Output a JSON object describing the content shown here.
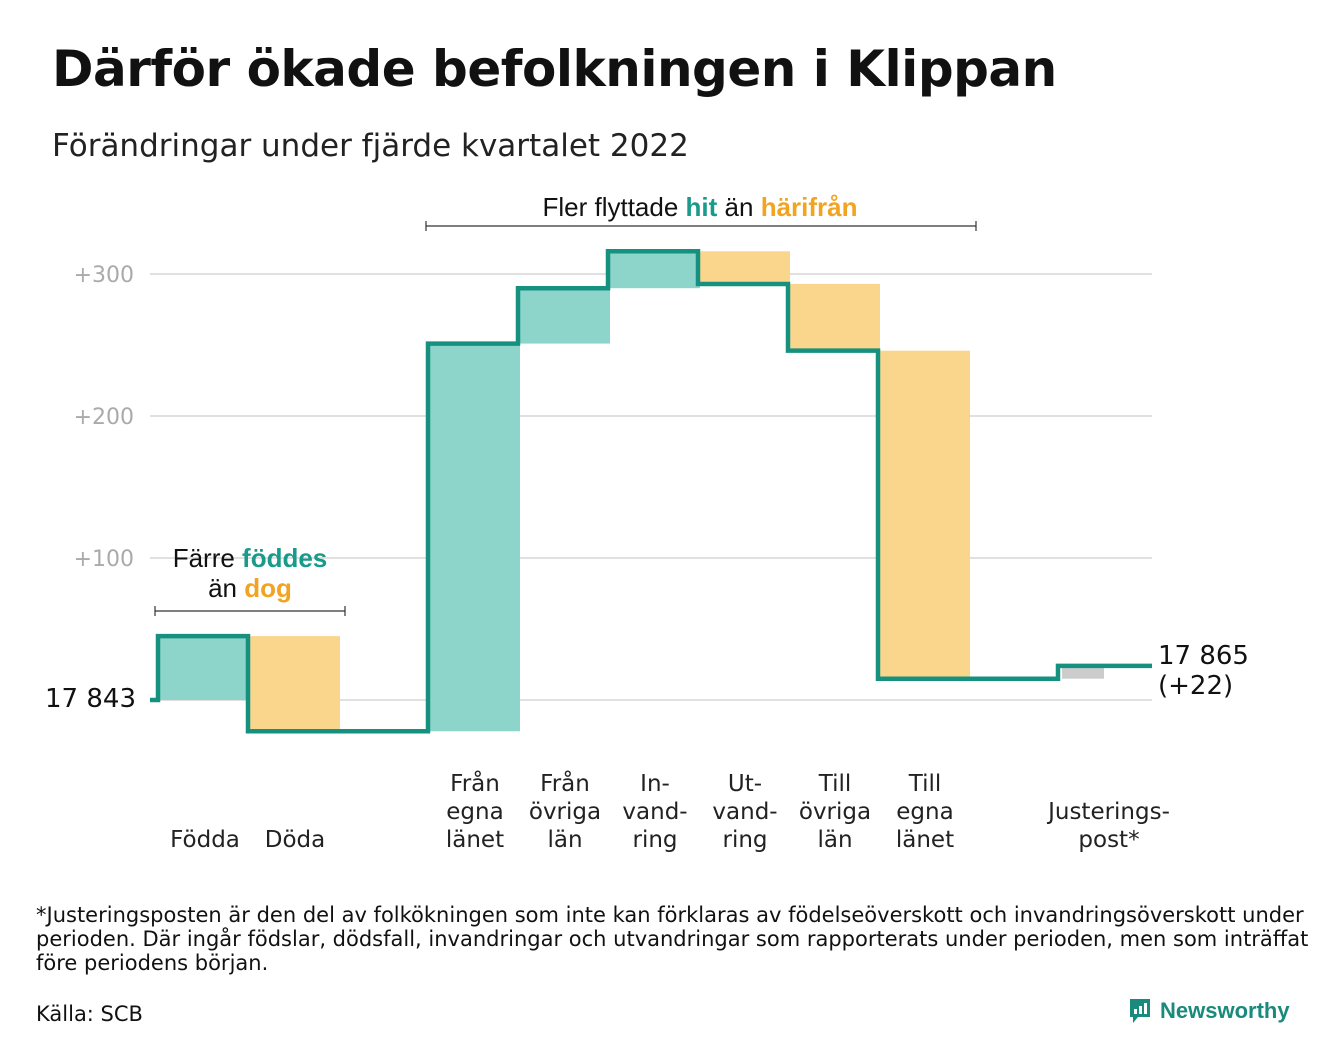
{
  "title": "Därför ökade befolkningen i Klippan",
  "subtitle": "Förändringar under fjärde kvartalet 2022",
  "chart_data": {
    "type": "waterfall",
    "start_value": 17843,
    "start_label": "17 843",
    "end_value": 17865,
    "end_label": "17 865",
    "end_change_label": "(+22)",
    "y_ticks": [
      {
        "value": 100,
        "label": "+100"
      },
      {
        "value": 200,
        "label": "+200"
      },
      {
        "value": 300,
        "label": "+300"
      }
    ],
    "ylim": [
      -30,
      330
    ],
    "steps": [
      {
        "label_lines": [
          "Födda"
        ],
        "change": 45,
        "kind": "in"
      },
      {
        "label_lines": [
          "Döda"
        ],
        "change": -67,
        "kind": "out"
      },
      {
        "label_lines": [
          "Från",
          "egna",
          "länet"
        ],
        "change": 273,
        "kind": "in"
      },
      {
        "label_lines": [
          "Från",
          "övriga",
          "län"
        ],
        "change": 39,
        "kind": "in"
      },
      {
        "label_lines": [
          "In-",
          "vand-",
          "ring"
        ],
        "change": 26,
        "kind": "in"
      },
      {
        "label_lines": [
          "Ut-",
          "vand-",
          "ring"
        ],
        "change": -23,
        "kind": "out"
      },
      {
        "label_lines": [
          "Till",
          "övriga",
          "län"
        ],
        "change": -47,
        "kind": "out"
      },
      {
        "label_lines": [
          "Till",
          "egna",
          "länet"
        ],
        "change": -231,
        "kind": "out"
      },
      {
        "label_lines": [
          "Justerings-",
          "post*"
        ],
        "change": 9,
        "kind": "adjust"
      }
    ],
    "annotations": {
      "births": {
        "line1": "Färre ",
        "line1_hl": "föddes",
        "line2": "än ",
        "line2_hl": "dog"
      },
      "moves": {
        "text": "Fler flyttade ",
        "hl_in": "hit",
        "mid": " än ",
        "hl_out": "härifrån"
      }
    },
    "colors": {
      "in": "#8dd4ca",
      "out": "#fad68d",
      "adjust": "#cccccc",
      "line": "#17917f",
      "grid": "#e0e0e0"
    }
  },
  "footnote": "*Justeringsposten är den del av folkökningen som inte kan förklaras av födelseöverskott och invandringsöverskott under perioden. Där ingår födslar, dödsfall, invandringar och utvandringar som rapporterats under perioden, men som inträffat före periodens början.",
  "source": "Källa: SCB",
  "brand": {
    "name": "Newsworthy",
    "icon": "newsworthy-logo-icon"
  }
}
